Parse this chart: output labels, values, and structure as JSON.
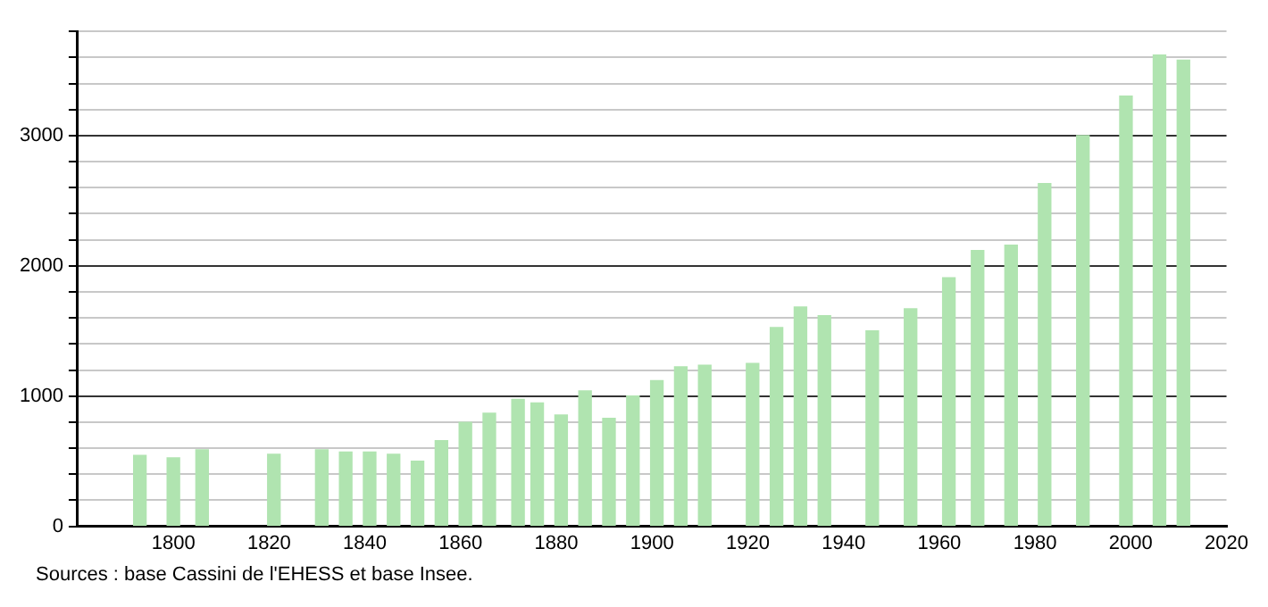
{
  "chart_data": {
    "type": "bar",
    "color": "#b0e4b0",
    "x": [
      1793,
      1800,
      1806,
      1821,
      1831,
      1836,
      1841,
      1846,
      1851,
      1856,
      1861,
      1866,
      1872,
      1876,
      1881,
      1886,
      1891,
      1896,
      1901,
      1906,
      1911,
      1921,
      1926,
      1931,
      1936,
      1946,
      1954,
      1962,
      1968,
      1975,
      1982,
      1990,
      1999,
      2006,
      2011
    ],
    "values": [
      544,
      526,
      588,
      553,
      588,
      570,
      570,
      553,
      500,
      658,
      798,
      868,
      974,
      947,
      855,
      1039,
      829,
      1000,
      1118,
      1224,
      1237,
      1250,
      1526,
      1684,
      1618,
      1500,
      1671,
      1908,
      2118,
      2158,
      2632,
      3000,
      3303,
      3618,
      3579
    ],
    "xlim": [
      1780,
      2020
    ],
    "xticks": [
      1800,
      1820,
      1840,
      1860,
      1880,
      1900,
      1920,
      1940,
      1960,
      1980,
      2000,
      2020
    ],
    "ylim": [
      0,
      3800
    ],
    "yticks": [
      0,
      {
        "value": 200,
        "label": null
      },
      {
        "value": 400,
        "label": null
      },
      {
        "value": 600,
        "label": null
      },
      {
        "value": 800,
        "label": null
      },
      1000,
      {
        "value": 1200,
        "label": null
      },
      {
        "value": 1400,
        "label": null
      },
      {
        "value": 1600,
        "label": null
      },
      {
        "value": 1800,
        "label": null
      },
      2000,
      {
        "value": 2200,
        "label": null
      },
      {
        "value": 2400,
        "label": null
      },
      {
        "value": 2600,
        "label": null
      },
      {
        "value": 2800,
        "label": null
      },
      3000,
      {
        "value": 3200,
        "label": null
      },
      {
        "value": 3400,
        "label": null
      },
      {
        "value": 3600,
        "label": null
      },
      {
        "value": 3800,
        "label": null
      }
    ],
    "grid": "y",
    "annotations": [
      "Sources : base Cassini de l'EHESS et base Insee."
    ]
  }
}
